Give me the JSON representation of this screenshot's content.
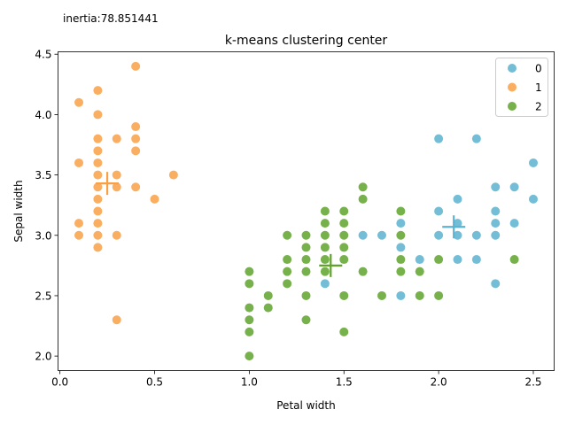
{
  "inertia_text": "inertia:78.851441",
  "chart_data": {
    "type": "scatter",
    "title": "k-means clustering center",
    "xlabel": "Petal width",
    "ylabel": "Sepal width",
    "xlim": [
      -0.01,
      2.61
    ],
    "ylim": [
      1.88,
      4.52
    ],
    "xticks": [
      0.0,
      0.5,
      1.0,
      1.5,
      2.0,
      2.5
    ],
    "xtick_labels": [
      "0.0",
      "0.5",
      "1.0",
      "1.5",
      "2.0",
      "2.5"
    ],
    "yticks": [
      2.0,
      2.5,
      3.0,
      3.5,
      4.0,
      4.5
    ],
    "ytick_labels": [
      "2.0",
      "2.5",
      "3.0",
      "3.5",
      "4.0",
      "4.5"
    ],
    "legend_position": "top-right",
    "series": [
      {
        "name": "0",
        "color": "#5bb3cf",
        "points": [
          [
            1.4,
            2.6
          ],
          [
            1.6,
            3.0
          ],
          [
            1.7,
            3.0
          ],
          [
            1.8,
            2.5
          ],
          [
            1.8,
            2.9
          ],
          [
            1.8,
            3.1
          ],
          [
            1.9,
            2.8
          ],
          [
            2.0,
            3.0
          ],
          [
            2.0,
            3.2
          ],
          [
            2.0,
            3.8
          ],
          [
            2.1,
            2.8
          ],
          [
            2.1,
            3.0
          ],
          [
            2.1,
            3.1
          ],
          [
            2.1,
            3.3
          ],
          [
            2.2,
            2.8
          ],
          [
            2.2,
            3.0
          ],
          [
            2.2,
            3.8
          ],
          [
            2.3,
            2.6
          ],
          [
            2.3,
            3.0
          ],
          [
            2.3,
            3.1
          ],
          [
            2.3,
            3.2
          ],
          [
            2.3,
            3.4
          ],
          [
            2.4,
            3.1
          ],
          [
            2.4,
            3.4
          ],
          [
            2.5,
            3.3
          ],
          [
            2.5,
            3.6
          ]
        ],
        "center": [
          2.08,
          3.07
        ]
      },
      {
        "name": "1",
        "color": "#f9a046",
        "points": [
          [
            0.1,
            3.0
          ],
          [
            0.1,
            3.1
          ],
          [
            0.1,
            3.6
          ],
          [
            0.1,
            4.1
          ],
          [
            0.2,
            2.9
          ],
          [
            0.2,
            3.0
          ],
          [
            0.2,
            3.1
          ],
          [
            0.2,
            3.2
          ],
          [
            0.2,
            3.3
          ],
          [
            0.2,
            3.4
          ],
          [
            0.2,
            3.5
          ],
          [
            0.2,
            3.6
          ],
          [
            0.2,
            3.7
          ],
          [
            0.2,
            3.8
          ],
          [
            0.2,
            4.0
          ],
          [
            0.2,
            4.2
          ],
          [
            0.3,
            2.3
          ],
          [
            0.3,
            3.0
          ],
          [
            0.3,
            3.4
          ],
          [
            0.3,
            3.5
          ],
          [
            0.3,
            3.8
          ],
          [
            0.4,
            3.4
          ],
          [
            0.4,
            3.7
          ],
          [
            0.4,
            3.8
          ],
          [
            0.4,
            3.9
          ],
          [
            0.4,
            4.4
          ],
          [
            0.5,
            3.3
          ],
          [
            0.6,
            3.5
          ]
        ],
        "center": [
          0.25,
          3.43
        ]
      },
      {
        "name": "2",
        "color": "#5fa32b",
        "points": [
          [
            1.0,
            2.0
          ],
          [
            1.0,
            2.2
          ],
          [
            1.0,
            2.3
          ],
          [
            1.0,
            2.4
          ],
          [
            1.0,
            2.6
          ],
          [
            1.0,
            2.7
          ],
          [
            1.1,
            2.4
          ],
          [
            1.1,
            2.5
          ],
          [
            1.2,
            2.6
          ],
          [
            1.2,
            2.7
          ],
          [
            1.2,
            2.8
          ],
          [
            1.2,
            3.0
          ],
          [
            1.3,
            2.3
          ],
          [
            1.3,
            2.5
          ],
          [
            1.3,
            2.7
          ],
          [
            1.3,
            2.8
          ],
          [
            1.3,
            2.9
          ],
          [
            1.3,
            3.0
          ],
          [
            1.4,
            2.7
          ],
          [
            1.4,
            2.8
          ],
          [
            1.4,
            2.9
          ],
          [
            1.4,
            3.0
          ],
          [
            1.4,
            3.1
          ],
          [
            1.4,
            3.2
          ],
          [
            1.5,
            2.2
          ],
          [
            1.5,
            2.5
          ],
          [
            1.5,
            2.8
          ],
          [
            1.5,
            2.9
          ],
          [
            1.5,
            3.0
          ],
          [
            1.5,
            3.1
          ],
          [
            1.5,
            3.2
          ],
          [
            1.6,
            2.7
          ],
          [
            1.6,
            3.3
          ],
          [
            1.6,
            3.4
          ],
          [
            1.7,
            2.5
          ],
          [
            1.8,
            2.7
          ],
          [
            1.8,
            2.8
          ],
          [
            1.8,
            3.0
          ],
          [
            1.8,
            3.2
          ],
          [
            1.9,
            2.5
          ],
          [
            1.9,
            2.7
          ],
          [
            2.0,
            2.5
          ],
          [
            2.0,
            2.8
          ],
          [
            2.4,
            2.8
          ]
        ],
        "center": [
          1.43,
          2.75
        ]
      }
    ]
  }
}
